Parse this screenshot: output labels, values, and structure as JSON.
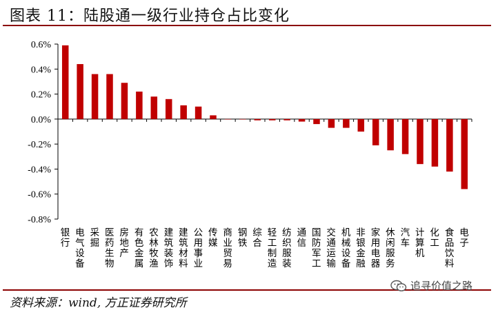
{
  "header": {
    "title": "图表 11：陆股通一级行业持仓占比变化"
  },
  "footer": {
    "source": "资料来源：wind, 方正证券研究所"
  },
  "watermark": {
    "text": "追寻价值之路",
    "icon": "wechat-icon"
  },
  "colors": {
    "bar": "#c00000",
    "rule": "#8b0000"
  },
  "chart_data": {
    "type": "bar",
    "title": "",
    "xlabel": "",
    "ylabel": "",
    "ylim": [
      -0.8,
      0.6
    ],
    "yticks": [
      0.6,
      0.4,
      0.2,
      0.0,
      -0.2,
      -0.4,
      -0.6,
      -0.8
    ],
    "ytick_labels": [
      "0.6%",
      "0.4%",
      "0.2%",
      "0.0%",
      "-0.2%",
      "-0.4%",
      "-0.6%",
      "-0.8%"
    ],
    "categories": [
      "银行",
      "电气设备",
      "采掘",
      "医药生物",
      "房地产",
      "有色金属",
      "农林牧渔",
      "建筑装饰",
      "建筑材料",
      "公用事业",
      "传媒",
      "商业贸易",
      "钢铁",
      "综合",
      "轻工制造",
      "纺织服装",
      "通信",
      "国防军工",
      "交通运输",
      "机械设备",
      "非银金融",
      "家用电器",
      "休闲服务",
      "汽车",
      "计算机",
      "化工",
      "食品饮料",
      "电子"
    ],
    "values": [
      0.59,
      0.44,
      0.36,
      0.36,
      0.29,
      0.22,
      0.18,
      0.16,
      0.11,
      0.1,
      0.03,
      0.0,
      -0.003,
      -0.01,
      -0.01,
      -0.01,
      -0.02,
      -0.04,
      -0.07,
      -0.07,
      -0.1,
      -0.21,
      -0.25,
      -0.28,
      -0.36,
      -0.38,
      -0.42,
      -0.56
    ],
    "grid": false,
    "legend": "none"
  }
}
